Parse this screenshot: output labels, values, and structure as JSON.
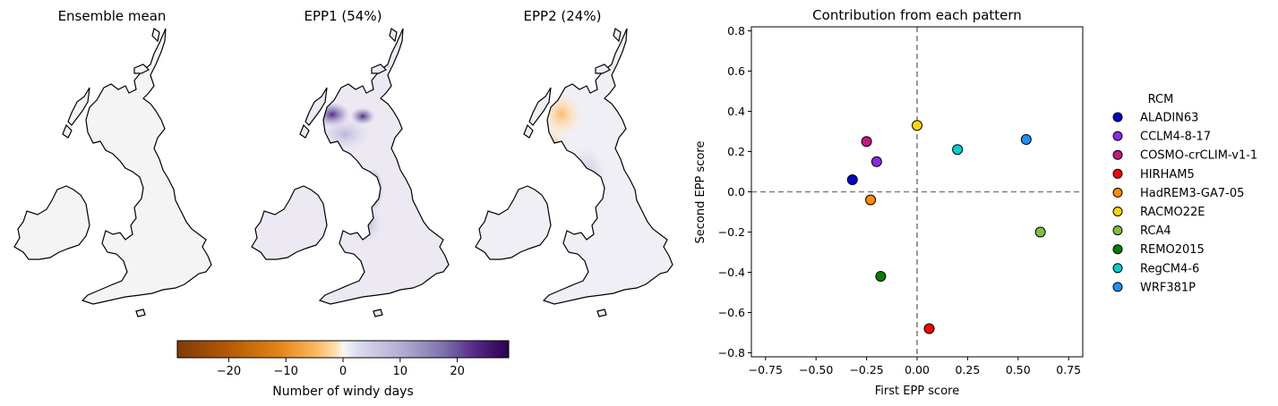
{
  "maps": {
    "titles": [
      "Ensemble mean",
      "EPP1 (54%)",
      "EPP2 (24%)"
    ],
    "colorbar": {
      "label": "Number of windy days",
      "range": [
        -29,
        29
      ],
      "ticks": [
        -20,
        -10,
        0,
        10,
        20
      ],
      "tick_labels": [
        "−20",
        "−10",
        "0",
        "10",
        "20"
      ],
      "colormap": "PuOr (orange negative, purple positive)"
    }
  },
  "chart_data": {
    "type": "scatter",
    "title": "Contribution from each pattern",
    "xlabel": "First EPP score",
    "ylabel": "Second EPP score",
    "xlim": [
      -0.82,
      0.82
    ],
    "ylim": [
      -0.82,
      0.82
    ],
    "xticks": [
      -0.75,
      -0.5,
      -0.25,
      0.0,
      0.25,
      0.5,
      0.75
    ],
    "xtick_labels": [
      "−0.75",
      "−0.50",
      "−0.25",
      "0.00",
      "0.25",
      "0.50",
      "0.75"
    ],
    "yticks": [
      0.8,
      0.6,
      0.4,
      0.2,
      0.0,
      -0.2,
      -0.4,
      -0.6,
      -0.8
    ],
    "ytick_labels": [
      "0.8",
      "0.6",
      "0.4",
      "0.2",
      "0.0",
      "−0.2",
      "−0.4",
      "−0.6",
      "−0.8"
    ],
    "grid": false,
    "reference_lines": {
      "x": 0,
      "y": 0,
      "style": "dashed",
      "color": "#808080"
    },
    "legend": {
      "title": "RCM",
      "placement": "outside-right"
    },
    "series": [
      {
        "name": "ALADIN63",
        "x": -0.32,
        "y": 0.06,
        "color": "#0000cd"
      },
      {
        "name": "CCLM4-8-17",
        "x": -0.2,
        "y": 0.15,
        "color": "#8a2be2"
      },
      {
        "name": "COSMO-crCLIM-v1-1",
        "x": -0.25,
        "y": 0.25,
        "color": "#c71585"
      },
      {
        "name": "HIRHAM5",
        "x": 0.06,
        "y": -0.68,
        "color": "#ff0000"
      },
      {
        "name": "HadREM3-GA7-05",
        "x": -0.23,
        "y": -0.04,
        "color": "#ff8c00"
      },
      {
        "name": "RACMO22E",
        "x": 0.0,
        "y": 0.33,
        "color": "#ffd700"
      },
      {
        "name": "RCA4",
        "x": 0.61,
        "y": -0.2,
        "color": "#7fbf3f"
      },
      {
        "name": "REMO2015",
        "x": -0.18,
        "y": -0.42,
        "color": "#008000"
      },
      {
        "name": "RegCM4-6",
        "x": 0.2,
        "y": 0.21,
        "color": "#00ced1"
      },
      {
        "name": "WRF381P",
        "x": 0.54,
        "y": 0.26,
        "color": "#1e90ff"
      }
    ]
  }
}
